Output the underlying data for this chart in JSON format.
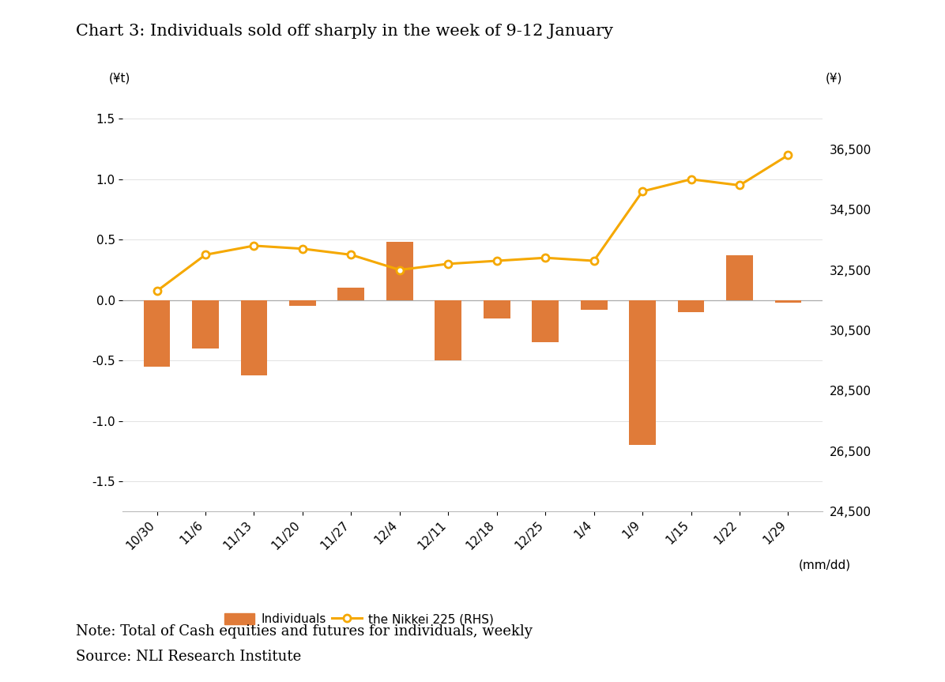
{
  "title": "Chart 3: Individuals sold off sharply in the week of 9-12 January",
  "categories": [
    "10/30",
    "11/6",
    "11/13",
    "11/20",
    "11/27",
    "12/4",
    "12/11",
    "12/18",
    "12/25",
    "1/4",
    "1/9",
    "1/15",
    "1/22",
    "1/29"
  ],
  "bar_values": [
    -0.55,
    -0.4,
    -0.62,
    -0.05,
    0.1,
    0.48,
    -0.5,
    -0.15,
    -0.35,
    -0.08,
    -1.2,
    -0.1,
    0.37,
    -0.02
  ],
  "line_values": [
    31800,
    33000,
    33300,
    33200,
    33000,
    32500,
    32700,
    32800,
    32900,
    32800,
    35100,
    35500,
    35300,
    36300
  ],
  "bar_color": "#E07B39",
  "line_color": "#F5A800",
  "marker_facecolor": "white",
  "marker_edgecolor": "#F5A800",
  "left_ylabel": "(¥t)",
  "right_ylabel": "(¥)",
  "left_ylim": [
    -1.75,
    1.75
  ],
  "left_yticks": [
    -1.5,
    -1.0,
    -0.5,
    0.0,
    0.5,
    1.0,
    1.5
  ],
  "left_yticklabels": [
    "-1.5",
    "-1.0",
    "-0.5",
    "0.0",
    "0.5",
    "1.0",
    "1.5"
  ],
  "right_ylim": [
    24500,
    38500
  ],
  "right_yticks": [
    24500,
    26500,
    28500,
    30500,
    32500,
    34500,
    36500
  ],
  "right_yticklabels": [
    "24,500",
    "26,500",
    "28,500",
    "30,500",
    "32,500",
    "34,500",
    "36,500"
  ],
  "xlabel_note": "(mm/dd)",
  "legend_bar_label": "Individuals",
  "legend_line_label": "the Nikkei 225 (RHS)",
  "note_line1": "Note: Total of Cash equities and futures for individuals, weekly",
  "note_line2": "Source: NLI Research Institute",
  "background_color": "#ffffff",
  "title_fontsize": 15,
  "axis_label_fontsize": 11,
  "tick_fontsize": 11,
  "legend_fontsize": 11,
  "note_fontsize": 13
}
